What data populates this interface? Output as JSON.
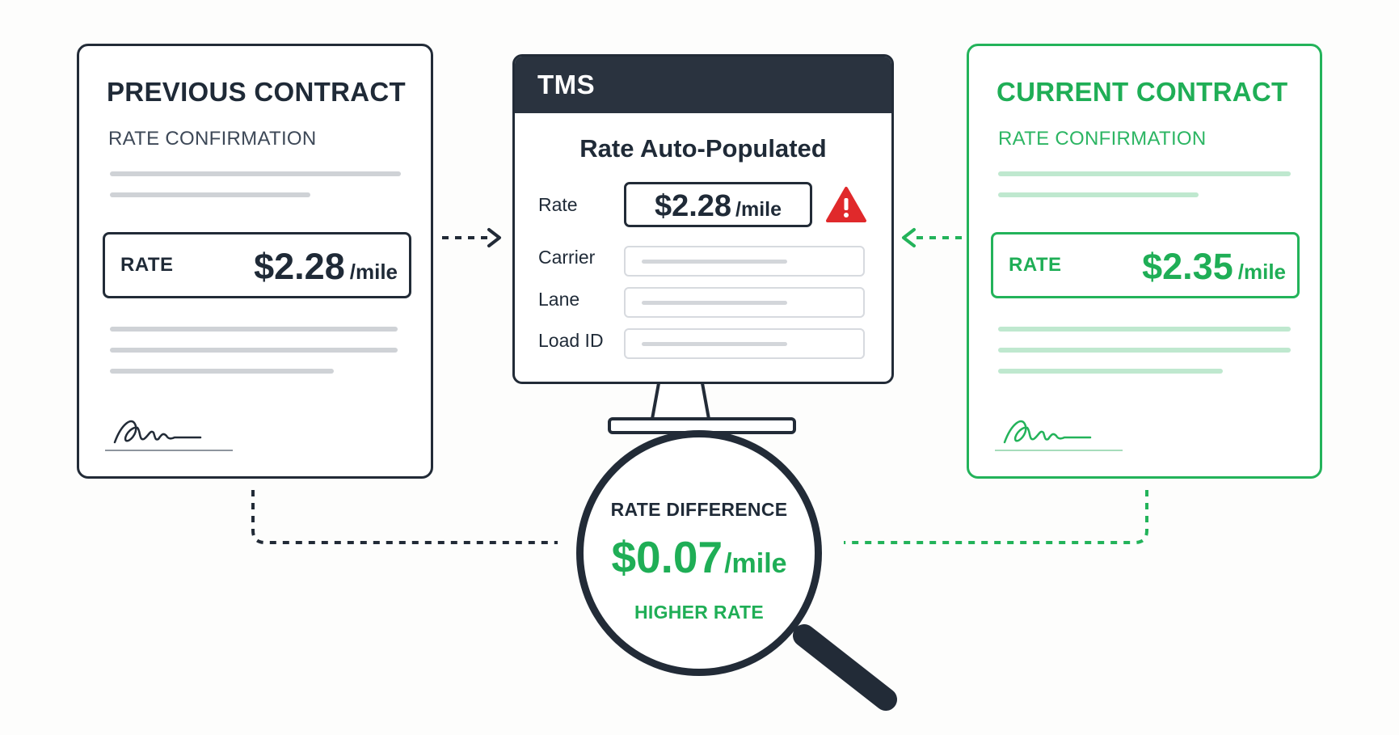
{
  "colors": {
    "dark": "#222b37",
    "green": "#23b35a",
    "warning": "#e0292b"
  },
  "previous_contract": {
    "title": "PREVIOUS CONTRACT",
    "subtitle": "RATE CONFIRMATION",
    "rate_label": "RATE",
    "rate_value": "$2.28",
    "rate_unit": "/mile"
  },
  "current_contract": {
    "title": "CURRENT CONTRACT",
    "subtitle": "RATE CONFIRMATION",
    "rate_label": "RATE",
    "rate_value": "$2.35",
    "rate_unit": "/mile"
  },
  "tms": {
    "title": "TMS",
    "heading": "Rate Auto-Populated",
    "rate_label": "Rate",
    "rate_value": "$2.28",
    "rate_unit": "/mile",
    "warning_icon": "warning-triangle-icon",
    "fields": [
      "Carrier",
      "Lane",
      "Load ID"
    ]
  },
  "difference": {
    "label": "RATE DIFFERENCE",
    "value": "$0.07",
    "unit": "/mile",
    "note": "HIGHER RATE"
  }
}
